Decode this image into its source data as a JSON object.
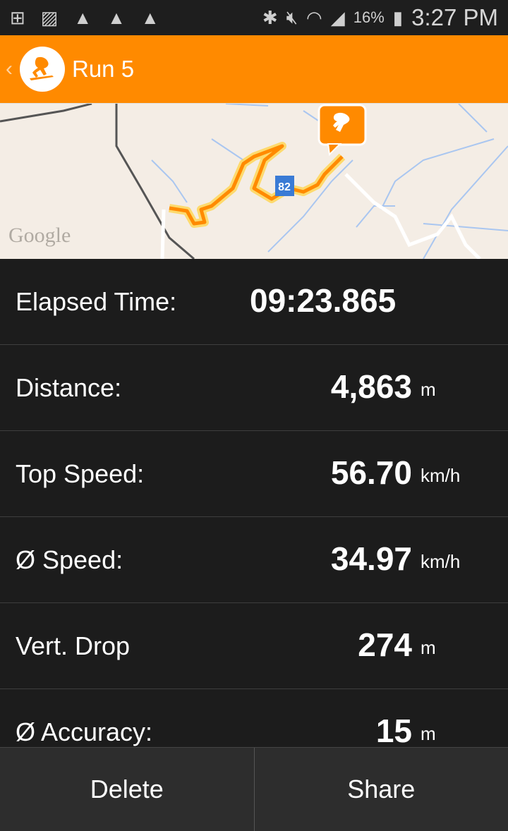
{
  "status_bar": {
    "icons": [
      "notification-plus-icon",
      "image-icon",
      "warning-icon",
      "warning-icon",
      "warning-icon",
      "bluetooth-icon",
      "mute-icon",
      "wifi-icon",
      "signal-icon",
      "battery-charging-icon"
    ],
    "battery": "16%",
    "time": "3:27 PM"
  },
  "app_bar": {
    "title": "Run 5",
    "logo": "skateboarder-icon"
  },
  "map": {
    "route_label": "82",
    "attribution": "Google",
    "route_color": "#ff8a00"
  },
  "stats": [
    {
      "label": "Elapsed Time:",
      "value": "09:23.865",
      "unit": ""
    },
    {
      "label": "Distance:",
      "value": "4,863",
      "unit": "m"
    },
    {
      "label": "Top Speed:",
      "value": "56.70",
      "unit": "km/h"
    },
    {
      "label": "Ø Speed:",
      "value": "34.97",
      "unit": "km/h"
    },
    {
      "label": "Vert. Drop",
      "value": "274",
      "unit": "m"
    },
    {
      "label": "Ø Accuracy:",
      "value": "15",
      "unit": "m"
    }
  ],
  "buttons": {
    "delete": "Delete",
    "share": "Share"
  }
}
